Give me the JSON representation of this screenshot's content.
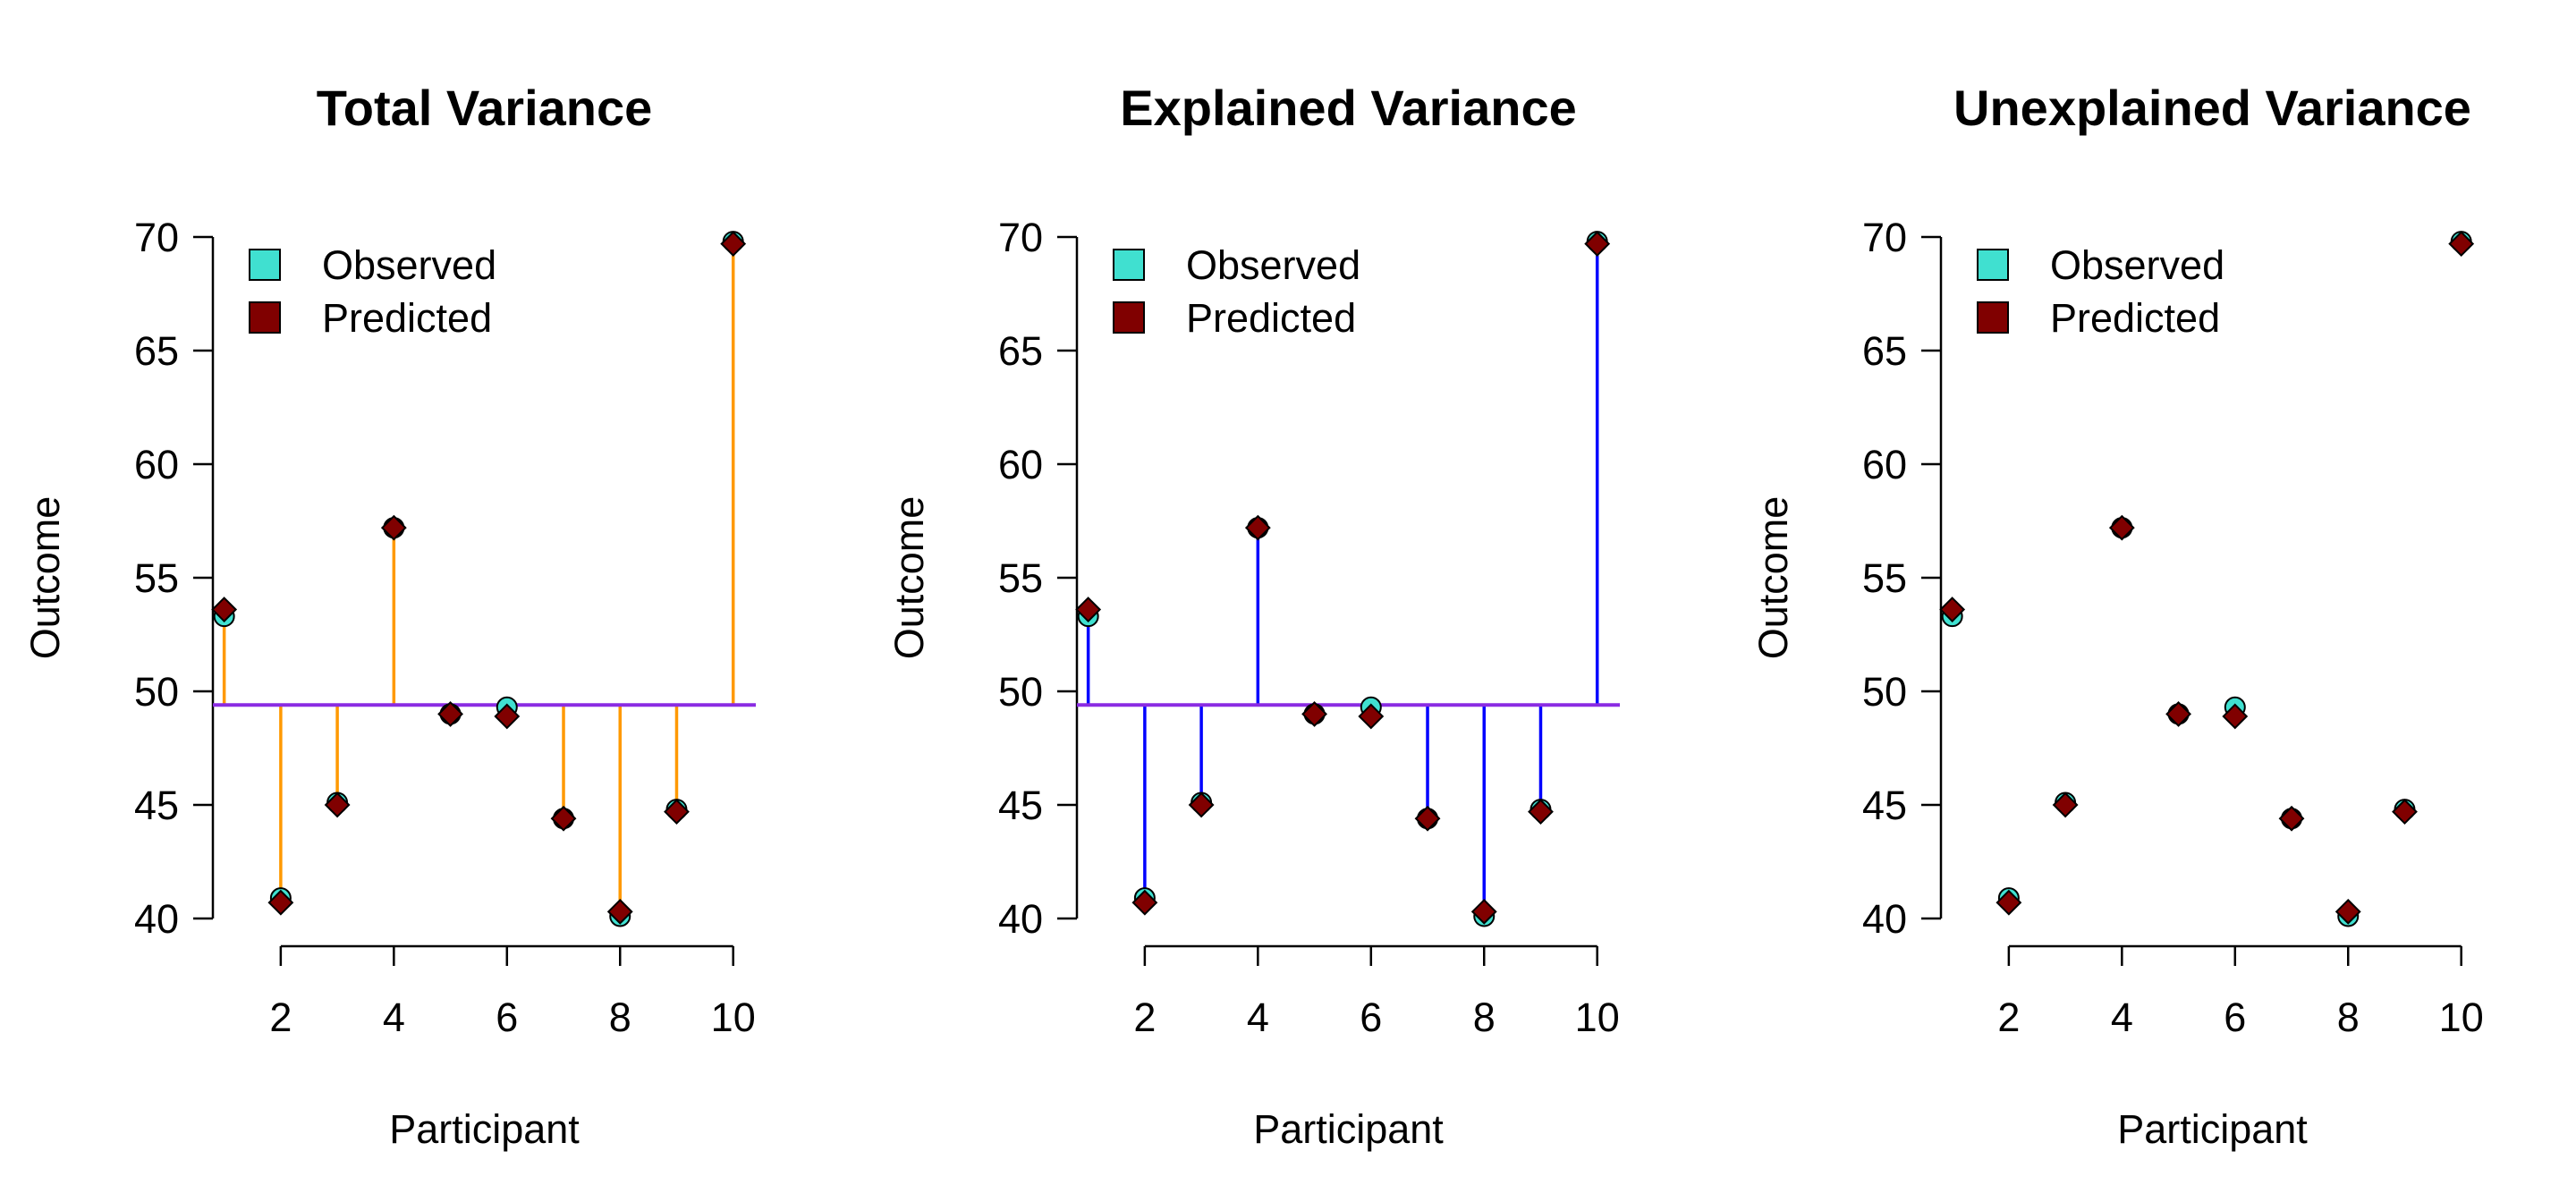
{
  "chart_data": [
    {
      "type": "scatter",
      "title": "Total Variance",
      "xlabel": "Participant",
      "ylabel": "Outcome",
      "xlim": [
        0.8,
        10.4
      ],
      "ylim": [
        40,
        70
      ],
      "x_ticks": [
        2,
        4,
        6,
        8,
        10
      ],
      "y_ticks": [
        40,
        45,
        50,
        55,
        60,
        65,
        70
      ],
      "mean_line": 49.4,
      "mean_line_color": "#8a2be2",
      "segments": "observed_to_mean",
      "segment_color": "#ff9900",
      "legend": {
        "position": "top-left",
        "entries": [
          "Observed",
          "Predicted"
        ]
      },
      "series": [
        {
          "name": "Observed",
          "color": "#40e0d0",
          "marker": "circle",
          "x": [
            1,
            2,
            3,
            4,
            5,
            6,
            7,
            8,
            9,
            10
          ],
          "values": [
            53.3,
            40.9,
            45.1,
            57.2,
            49.0,
            49.3,
            44.4,
            40.1,
            44.8,
            69.8
          ]
        },
        {
          "name": "Predicted",
          "color": "#800000",
          "marker": "diamond",
          "x": [
            1,
            2,
            3,
            4,
            5,
            6,
            7,
            8,
            9,
            10
          ],
          "values": [
            53.6,
            40.7,
            45.0,
            57.2,
            49.0,
            48.9,
            44.4,
            40.3,
            44.7,
            69.7
          ]
        }
      ]
    },
    {
      "type": "scatter",
      "title": "Explained Variance",
      "xlabel": "Participant",
      "ylabel": "Outcome",
      "xlim": [
        0.8,
        10.4
      ],
      "ylim": [
        40,
        70
      ],
      "x_ticks": [
        2,
        4,
        6,
        8,
        10
      ],
      "y_ticks": [
        40,
        45,
        50,
        55,
        60,
        65,
        70
      ],
      "mean_line": 49.4,
      "mean_line_color": "#8a2be2",
      "segments": "predicted_to_mean",
      "segment_color": "#0000ff",
      "legend": {
        "position": "top-left",
        "entries": [
          "Observed",
          "Predicted"
        ]
      },
      "series": [
        {
          "name": "Observed",
          "color": "#40e0d0",
          "marker": "circle",
          "x": [
            1,
            2,
            3,
            4,
            5,
            6,
            7,
            8,
            9,
            10
          ],
          "values": [
            53.3,
            40.9,
            45.1,
            57.2,
            49.0,
            49.3,
            44.4,
            40.1,
            44.8,
            69.8
          ]
        },
        {
          "name": "Predicted",
          "color": "#800000",
          "marker": "diamond",
          "x": [
            1,
            2,
            3,
            4,
            5,
            6,
            7,
            8,
            9,
            10
          ],
          "values": [
            53.6,
            40.7,
            45.0,
            57.2,
            49.0,
            48.9,
            44.4,
            40.3,
            44.7,
            69.7
          ]
        }
      ]
    },
    {
      "type": "scatter",
      "title": "Unexplained Variance",
      "xlabel": "Participant",
      "ylabel": "Outcome",
      "xlim": [
        0.8,
        10.4
      ],
      "ylim": [
        40,
        70
      ],
      "x_ticks": [
        2,
        4,
        6,
        8,
        10
      ],
      "y_ticks": [
        40,
        45,
        50,
        55,
        60,
        65,
        70
      ],
      "mean_line": null,
      "segments": "observed_to_predicted",
      "segment_color": "#ff0000",
      "legend": {
        "position": "top-left",
        "entries": [
          "Observed",
          "Predicted"
        ]
      },
      "series": [
        {
          "name": "Observed",
          "color": "#40e0d0",
          "marker": "circle",
          "x": [
            1,
            2,
            3,
            4,
            5,
            6,
            7,
            8,
            9,
            10
          ],
          "values": [
            53.3,
            40.9,
            45.1,
            57.2,
            49.0,
            49.3,
            44.4,
            40.1,
            44.8,
            69.8
          ]
        },
        {
          "name": "Predicted",
          "color": "#800000",
          "marker": "diamond",
          "x": [
            1,
            2,
            3,
            4,
            5,
            6,
            7,
            8,
            9,
            10
          ],
          "values": [
            53.6,
            40.7,
            45.0,
            57.2,
            49.0,
            48.9,
            44.4,
            40.3,
            44.7,
            69.7
          ]
        }
      ]
    }
  ]
}
